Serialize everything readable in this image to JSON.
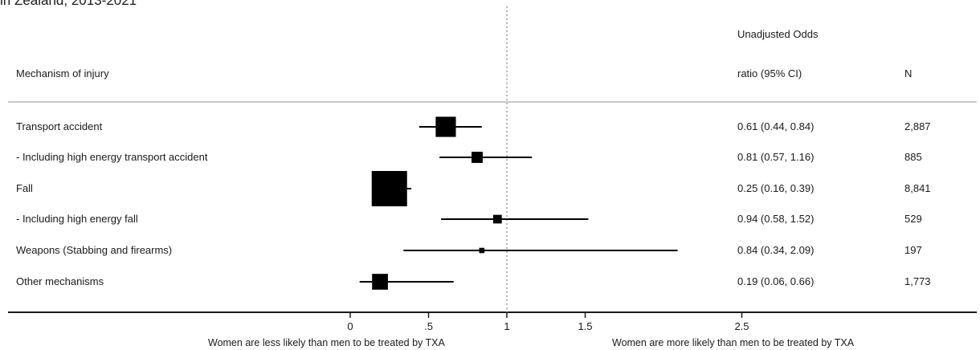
{
  "cropped_title": "in Zealand, 2013-2021",
  "chart_data": {
    "type": "forest",
    "headers": {
      "label": "Mechanism of injury",
      "or_line1": "Unadjusted Odds",
      "or_line2": "ratio (95% CI)",
      "n": "N"
    },
    "rows": [
      {
        "label": "Transport accident",
        "or": 0.61,
        "lo": 0.44,
        "hi": 0.84,
        "or_text": "0.61 (0.44, 0.84)",
        "n": "2,887"
      },
      {
        "label": "- Including high energy transport accident",
        "or": 0.81,
        "lo": 0.57,
        "hi": 1.16,
        "or_text": "0.81 (0.57, 1.16)",
        "n": "885"
      },
      {
        "label": "Fall",
        "or": 0.25,
        "lo": 0.16,
        "hi": 0.39,
        "or_text": "0.25 (0.16, 0.39)",
        "n": "8,841"
      },
      {
        "label": "- Including high energy fall",
        "or": 0.94,
        "lo": 0.58,
        "hi": 1.52,
        "or_text": "0.94 (0.58, 1.52)",
        "n": "529"
      },
      {
        "label": "Weapons (Stabbing and firearms)",
        "or": 0.84,
        "lo": 0.34,
        "hi": 2.09,
        "or_text": "0.84 (0.34, 2.09)",
        "n": "197"
      },
      {
        "label": "Other mechanisms",
        "or": 0.19,
        "lo": 0.06,
        "hi": 0.66,
        "or_text": "0.19 (0.06, 0.66)",
        "n": "1,773"
      }
    ],
    "xticks": [
      0,
      0.5,
      1,
      1.5,
      2.5
    ],
    "xtick_labels": [
      "0",
      ".5",
      "1",
      "1.5",
      "2.5"
    ],
    "reference_line": 1,
    "xlim": [
      0,
      2.5
    ],
    "xlabel_left": "Women are less likely than men to be treated by TXA",
    "xlabel_right": "Women are more likely than men to be treated by TXA"
  }
}
